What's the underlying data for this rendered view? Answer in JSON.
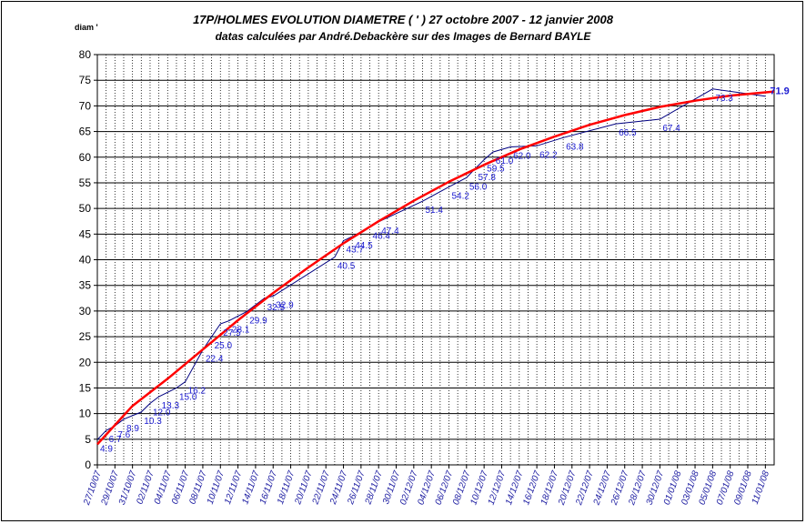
{
  "chart_data": {
    "type": "line",
    "title": "17P/HOLMES  EVOLUTION DIAMETRE  ( ' )      27 octobre 2007 - 12 janvier 2008",
    "subtitle": "datas calculées par André.Debackère sur des Images de Bernard BAYLE",
    "ylabel": "diam '",
    "xlabel": "",
    "ylim": [
      0,
      80
    ],
    "yticks": [
      0,
      5,
      10,
      15,
      20,
      25,
      30,
      35,
      40,
      45,
      50,
      55,
      60,
      65,
      70,
      75,
      80
    ],
    "grid": true,
    "x_tick_labels": [
      "27/10/07",
      "29/10/07",
      "31/10/07",
      "02/11/07",
      "04/11/07",
      "06/11/07",
      "08/11/07",
      "10/11/07",
      "12/11/07",
      "14/11/07",
      "16/11/07",
      "18/11/07",
      "20/11/07",
      "22/11/07",
      "24/11/07",
      "26/11/07",
      "28/11/07",
      "30/11/07",
      "02/12/07",
      "04/12/07",
      "06/12/07",
      "08/12/07",
      "10/12/07",
      "12/12/07",
      "14/12/07",
      "16/12/07",
      "18/12/07",
      "20/12/07",
      "22/12/07",
      "24/12/07",
      "26/12/07",
      "28/12/07",
      "30/12/07",
      "01/01/08",
      "03/01/08",
      "05/01/08",
      "07/01/08",
      "09/01/08",
      "11/01/08"
    ],
    "series": [
      {
        "color": "#000080",
        "values": [
          {
            "x": "27/10/07",
            "y": 4.9,
            "label": "4.9"
          },
          {
            "x": "28/10/07",
            "y": 6.7,
            "label": "6.7"
          },
          {
            "x": "29/10/07",
            "y": 7.6,
            "label": "7.6"
          },
          {
            "x": "30/10/07",
            "y": 8.9,
            "label": "8.9"
          },
          {
            "x": "01/11/07",
            "y": 10.3,
            "label": "10.3"
          },
          {
            "x": "02/11/07",
            "y": 12.0,
            "label": "12.0"
          },
          {
            "x": "03/11/07",
            "y": 13.3,
            "label": "13.3"
          },
          {
            "x": "05/11/07",
            "y": 15.0,
            "label": "15.0"
          },
          {
            "x": "06/11/07",
            "y": 16.2,
            "label": "16.2"
          },
          {
            "x": "08/11/07",
            "y": 22.4,
            "label": "22.4"
          },
          {
            "x": "09/11/07",
            "y": 25.0,
            "label": "25.0"
          },
          {
            "x": "10/11/07",
            "y": 27.5,
            "label": "27.5"
          },
          {
            "x": "11/11/07",
            "y": 28.1,
            "label": "28.1"
          },
          {
            "x": "13/11/07",
            "y": 29.9,
            "label": "29.9"
          },
          {
            "x": "15/11/07",
            "y": 32.5,
            "label": "32.5"
          },
          {
            "x": "16/11/07",
            "y": 32.9,
            "label": "32.9"
          },
          {
            "x": "23/11/07",
            "y": 40.5,
            "label": "40.5"
          },
          {
            "x": "24/11/07",
            "y": 43.7,
            "label": "43.7"
          },
          {
            "x": "25/11/07",
            "y": 44.5,
            "label": "44.5"
          },
          {
            "x": "27/11/07",
            "y": 46.4,
            "label": "46.4"
          },
          {
            "x": "28/11/07",
            "y": 47.4,
            "label": "47.4"
          },
          {
            "x": "03/12/07",
            "y": 51.4,
            "label": "51.4"
          },
          {
            "x": "06/12/07",
            "y": 54.2,
            "label": "54.2"
          },
          {
            "x": "08/12/07",
            "y": 56.0,
            "label": "56.0"
          },
          {
            "x": "09/12/07",
            "y": 57.8,
            "label": "57.8"
          },
          {
            "x": "10/12/07",
            "y": 59.5,
            "label": "59.5"
          },
          {
            "x": "11/12/07",
            "y": 61.0,
            "label": "61.0"
          },
          {
            "x": "13/12/07",
            "y": 62.0,
            "label": "62.0"
          },
          {
            "x": "16/12/07",
            "y": 62.2,
            "label": "62.2"
          },
          {
            "x": "19/12/07",
            "y": 63.8,
            "label": "63.8"
          },
          {
            "x": "25/12/07",
            "y": 66.5,
            "label": "66.5"
          },
          {
            "x": "30/12/07",
            "y": 67.4,
            "label": "67.4"
          },
          {
            "x": "05/01/08",
            "y": 73.3,
            "label": "73.3"
          },
          {
            "x": "11/01/08",
            "y": 71.9,
            "label": "71.9"
          }
        ]
      },
      {
        "color": "#ff0000",
        "values": [
          {
            "x": "27/10/07",
            "y": 4.0
          },
          {
            "x": "31/10/07",
            "y": 11.5
          },
          {
            "x": "04/11/07",
            "y": 16.8
          },
          {
            "x": "08/11/07",
            "y": 22.5
          },
          {
            "x": "12/11/07",
            "y": 28.2
          },
          {
            "x": "16/11/07",
            "y": 33.5
          },
          {
            "x": "20/11/07",
            "y": 38.5
          },
          {
            "x": "24/11/07",
            "y": 43.2
          },
          {
            "x": "28/11/07",
            "y": 47.5
          },
          {
            "x": "02/12/07",
            "y": 51.5
          },
          {
            "x": "06/12/07",
            "y": 55.2
          },
          {
            "x": "10/12/07",
            "y": 58.5
          },
          {
            "x": "14/12/07",
            "y": 61.5
          },
          {
            "x": "18/12/07",
            "y": 64.0
          },
          {
            "x": "22/12/07",
            "y": 66.3
          },
          {
            "x": "26/12/07",
            "y": 68.2
          },
          {
            "x": "30/12/07",
            "y": 69.8
          },
          {
            "x": "03/01/08",
            "y": 71.0
          },
          {
            "x": "07/01/08",
            "y": 72.0
          },
          {
            "x": "12/01/08",
            "y": 72.8
          }
        ]
      }
    ]
  }
}
